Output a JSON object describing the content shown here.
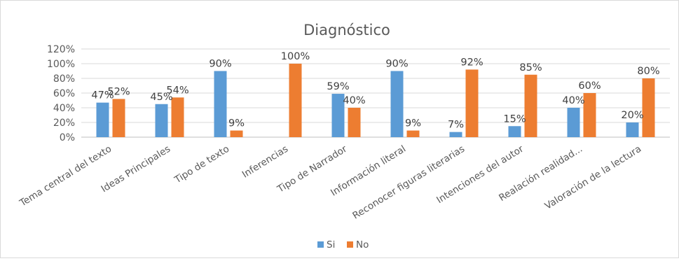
{
  "chart_data": {
    "type": "bar",
    "title": "Diagnóstico",
    "xlabel": "",
    "ylabel": "",
    "ylim": [
      0,
      1.2
    ],
    "yticks": [
      "0%",
      "20%",
      "40%",
      "60%",
      "80%",
      "100%",
      "120%"
    ],
    "grid": true,
    "legend_position": "bottom",
    "categories": [
      "Tema central del texto",
      "Ideas Principales",
      "Tipo de texto",
      "Inferencias",
      "Tipo de Narrador",
      "Información literal",
      "Reconocer figuras literarias",
      "Intenciones del autor",
      "Realación realidad...",
      "Valoración de la lectura"
    ],
    "series": [
      {
        "name": "Si",
        "color": "#5b9bd5",
        "values": [
          0.47,
          0.45,
          0.9,
          null,
          0.59,
          0.9,
          0.07,
          0.15,
          0.4,
          0.2
        ],
        "labels": [
          "47%",
          "45%",
          "90%",
          "",
          "59%",
          "90%",
          "7%",
          "15%",
          "40%",
          "20%"
        ]
      },
      {
        "name": "No",
        "color": "#ed7d31",
        "values": [
          0.52,
          0.54,
          0.09,
          1.0,
          0.4,
          0.09,
          0.92,
          0.85,
          0.6,
          0.8
        ],
        "labels": [
          "52%",
          "54%",
          "9%",
          "100%",
          "40%",
          "9%",
          "92%",
          "85%",
          "60%",
          "80%"
        ]
      }
    ]
  }
}
